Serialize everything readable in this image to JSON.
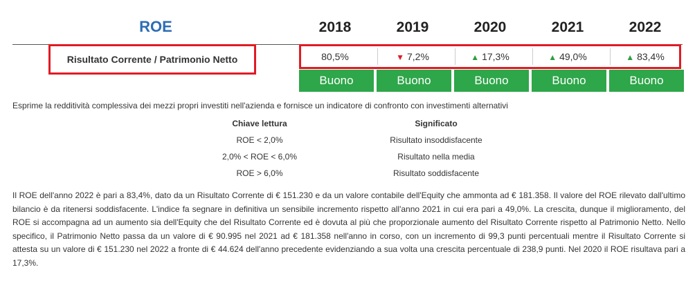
{
  "header": {
    "title": "ROE",
    "years": [
      "2018",
      "2019",
      "2020",
      "2021",
      "2022"
    ]
  },
  "metric": {
    "label": "Risultato Corrente / Patrimonio Netto",
    "values": [
      {
        "text": "80,5%",
        "trend": "none"
      },
      {
        "text": "7,2%",
        "trend": "down"
      },
      {
        "text": "17,3%",
        "trend": "up"
      },
      {
        "text": "49,0%",
        "trend": "up"
      },
      {
        "text": "83,4%",
        "trend": "up"
      }
    ],
    "ratings": [
      "Buono",
      "Buono",
      "Buono",
      "Buono",
      "Buono"
    ],
    "trend_symbols": {
      "up": "▲",
      "down": "▼"
    }
  },
  "description": "Esprime la redditività complessiva dei mezzi propri investiti nell'azienda e fornisce un indicatore di confronto con investimenti alternativi",
  "legend": {
    "col_key": "Chiave lettura",
    "col_meaning": "Significato",
    "rows": [
      {
        "key": "ROE < 2,0%",
        "meaning": "Risultato insoddisfacente"
      },
      {
        "key": "2,0% < ROE < 6,0%",
        "meaning": "Risultato nella media"
      },
      {
        "key": "ROE > 6,0%",
        "meaning": "Risultato soddisfacente"
      }
    ]
  },
  "analysis": "Il ROE dell'anno 2022 è pari a 83,4%, dato da un Risultato Corrente di € 151.230 e da un valore contabile dell'Equity che ammonta ad € 181.358. Il valore del ROE rilevato dall'ultimo bilancio è da ritenersi soddisfacente. L'indice fa segnare in definitiva un sensibile incremento rispetto all'anno 2021 in cui era pari a 49,0%. La crescita, dunque il miglioramento, del ROE si accompagna ad un aumento sia dell'Equity che del Risultato Corrente ed è dovuta al più che proporzionale aumento del Risultato Corrente rispetto al Patrimonio Netto. Nello specifico, il Patrimonio Netto passa da un valore di € 90.995 nel 2021 ad € 181.358 nell'anno in corso, con un incremento di 99,3 punti percentuali mentre il Risultato Corrente si attesta su un valore di € 151.230 nel 2022 a fronte di € 44.624 dell'anno precedente evidenziando a sua volta una crescita percentuale di 238,9 punti. Nel 2020 il ROE risultava pari a 17,3%.",
  "colors": {
    "title": "#2c6db5",
    "badge": "#2ea64a",
    "highlight_border": "#e01b24",
    "trend_up": "#2e9e40",
    "trend_down": "#e01b24"
  }
}
